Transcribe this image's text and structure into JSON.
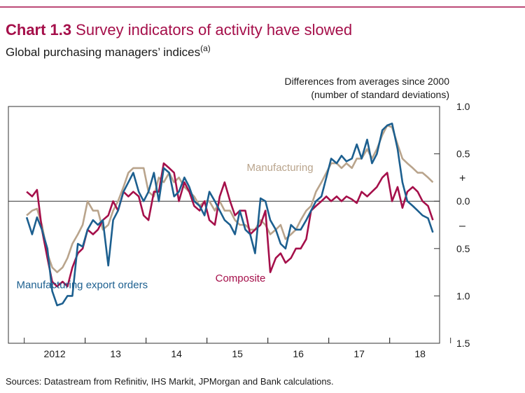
{
  "chart_data": {
    "type": "line",
    "title_prefix": "Chart 1.3",
    "title": "Survey indicators of activity have slowed",
    "subtitle": "Global purchasing managers’ indices",
    "subtitle_note": "(a)",
    "y_axis_label": [
      "Differences from averages since 2000",
      "(number of standard deviations)"
    ],
    "sign_labels": [
      "+",
      "–"
    ],
    "source": "Sources: Datastream from Refinitiv, IHS Markit, JPMorgan and Bank calculations.",
    "xlim": [
      2011.74,
      2018.82
    ],
    "xticks": [
      {
        "value": 2012.5,
        "label": "2012"
      },
      {
        "value": 2013.5,
        "label": "13"
      },
      {
        "value": 2014.5,
        "label": "14"
      },
      {
        "value": 2015.5,
        "label": "15"
      },
      {
        "value": 2016.5,
        "label": "16"
      },
      {
        "value": 2017.5,
        "label": "17"
      },
      {
        "value": 2018.5,
        "label": "18"
      }
    ],
    "ylim": [
      -1.5,
      1.0
    ],
    "yticks": [
      {
        "value": 1.0,
        "label": "1.0"
      },
      {
        "value": 0.5,
        "label": "0.5"
      },
      {
        "value": 0.0,
        "label": "0.0"
      },
      {
        "value": -0.5,
        "label": "0.5"
      },
      {
        "value": -1.0,
        "label": "1.0"
      },
      {
        "value": -1.5,
        "label": "1.5"
      }
    ],
    "x": [
      2012.04,
      2012.13,
      2012.21,
      2012.29,
      2012.38,
      2012.46,
      2012.54,
      2012.63,
      2012.71,
      2012.79,
      2012.88,
      2012.96,
      2013.04,
      2013.13,
      2013.21,
      2013.29,
      2013.38,
      2013.46,
      2013.54,
      2013.63,
      2013.71,
      2013.79,
      2013.88,
      2013.96,
      2014.04,
      2014.13,
      2014.21,
      2014.29,
      2014.38,
      2014.46,
      2014.54,
      2014.63,
      2014.71,
      2014.79,
      2014.88,
      2014.96,
      2015.04,
      2015.13,
      2015.21,
      2015.29,
      2015.38,
      2015.46,
      2015.54,
      2015.63,
      2015.71,
      2015.79,
      2015.88,
      2015.96,
      2016.04,
      2016.13,
      2016.21,
      2016.29,
      2016.38,
      2016.46,
      2016.54,
      2016.63,
      2016.71,
      2016.79,
      2016.88,
      2016.96,
      2017.04,
      2017.13,
      2017.21,
      2017.29,
      2017.38,
      2017.46,
      2017.54,
      2017.63,
      2017.71,
      2017.79,
      2017.88,
      2017.96,
      2018.04,
      2018.13,
      2018.21,
      2018.29,
      2018.38,
      2018.46,
      2018.54,
      2018.63,
      2018.71
    ],
    "series": [
      {
        "name": "Manufacturing",
        "color": "#b9a48c",
        "label_pos": [
          2016.2,
          0.32
        ],
        "values": [
          -0.15,
          -0.1,
          -0.08,
          -0.25,
          -0.55,
          -0.7,
          -0.75,
          -0.7,
          -0.6,
          -0.45,
          -0.35,
          -0.25,
          0.0,
          -0.1,
          -0.1,
          -0.3,
          -0.25,
          -0.1,
          0.0,
          0.15,
          0.3,
          0.35,
          0.35,
          0.35,
          0.1,
          0.05,
          0.25,
          0.2,
          0.3,
          0.2,
          0.25,
          0.15,
          0.1,
          0.05,
          -0.05,
          0.0,
          0.0,
          -0.1,
          0.0,
          -0.1,
          -0.1,
          -0.2,
          -0.25,
          -0.25,
          -0.3,
          -0.3,
          -0.2,
          -0.25,
          -0.35,
          -0.3,
          -0.25,
          -0.4,
          -0.35,
          -0.3,
          -0.2,
          -0.1,
          -0.05,
          0.1,
          0.2,
          0.3,
          0.4,
          0.4,
          0.35,
          0.4,
          0.35,
          0.45,
          0.45,
          0.55,
          0.45,
          0.55,
          0.7,
          0.8,
          0.78,
          0.6,
          0.45,
          0.4,
          0.35,
          0.3,
          0.3,
          0.25,
          0.2
        ]
      },
      {
        "name": "Composite",
        "color": "#a50f4a",
        "label_pos": [
          2015.55,
          -0.85
        ],
        "values": [
          0.1,
          0.05,
          0.12,
          -0.3,
          -0.6,
          -0.85,
          -0.9,
          -0.85,
          -0.9,
          -0.7,
          -0.55,
          -0.5,
          -0.3,
          -0.35,
          -0.3,
          -0.2,
          -0.15,
          0.0,
          -0.1,
          0.1,
          0.05,
          0.1,
          0.05,
          -0.15,
          -0.2,
          0.1,
          0.1,
          0.4,
          0.35,
          0.3,
          0.0,
          0.2,
          0.1,
          -0.05,
          -0.1,
          0.0,
          -0.2,
          -0.25,
          0.05,
          0.2,
          0.0,
          -0.15,
          -0.1,
          -0.1,
          -0.35,
          -0.3,
          -0.25,
          -0.1,
          -0.75,
          -0.6,
          -0.55,
          -0.65,
          -0.6,
          -0.5,
          -0.5,
          -0.4,
          -0.1,
          -0.05,
          0.0,
          0.05,
          0.0,
          0.05,
          0.0,
          0.05,
          0.02,
          -0.02,
          0.1,
          0.05,
          0.1,
          0.15,
          0.25,
          0.3,
          0.0,
          0.15,
          -0.07,
          0.1,
          0.15,
          0.1,
          0.0,
          -0.05,
          -0.2
        ]
      },
      {
        "name": "Manufacturing export orders",
        "color": "#1c5f8f",
        "label_pos": [
          2012.95,
          -0.92
        ],
        "values": [
          -0.17,
          -0.35,
          -0.17,
          -0.3,
          -0.5,
          -0.95,
          -1.1,
          -1.08,
          -1.0,
          -1.0,
          -0.45,
          -0.48,
          -0.3,
          -0.2,
          -0.25,
          -0.2,
          -0.68,
          -0.2,
          -0.1,
          0.1,
          0.2,
          0.3,
          0.1,
          0.0,
          0.1,
          0.3,
          0.0,
          0.35,
          0.3,
          0.05,
          0.1,
          0.25,
          0.15,
          0.0,
          -0.05,
          -0.15,
          0.1,
          0.0,
          -0.1,
          -0.2,
          -0.25,
          -0.35,
          -0.1,
          -0.3,
          -0.35,
          -0.55,
          0.03,
          0.0,
          -0.2,
          -0.3,
          -0.45,
          -0.5,
          -0.25,
          -0.3,
          -0.3,
          -0.2,
          -0.1,
          0.0,
          0.05,
          0.25,
          0.45,
          0.4,
          0.48,
          0.42,
          0.45,
          0.6,
          0.45,
          0.65,
          0.4,
          0.5,
          0.75,
          0.8,
          0.82,
          0.55,
          0.2,
          0.0,
          -0.05,
          -0.1,
          -0.15,
          -0.18,
          -0.33
        ]
      }
    ]
  }
}
